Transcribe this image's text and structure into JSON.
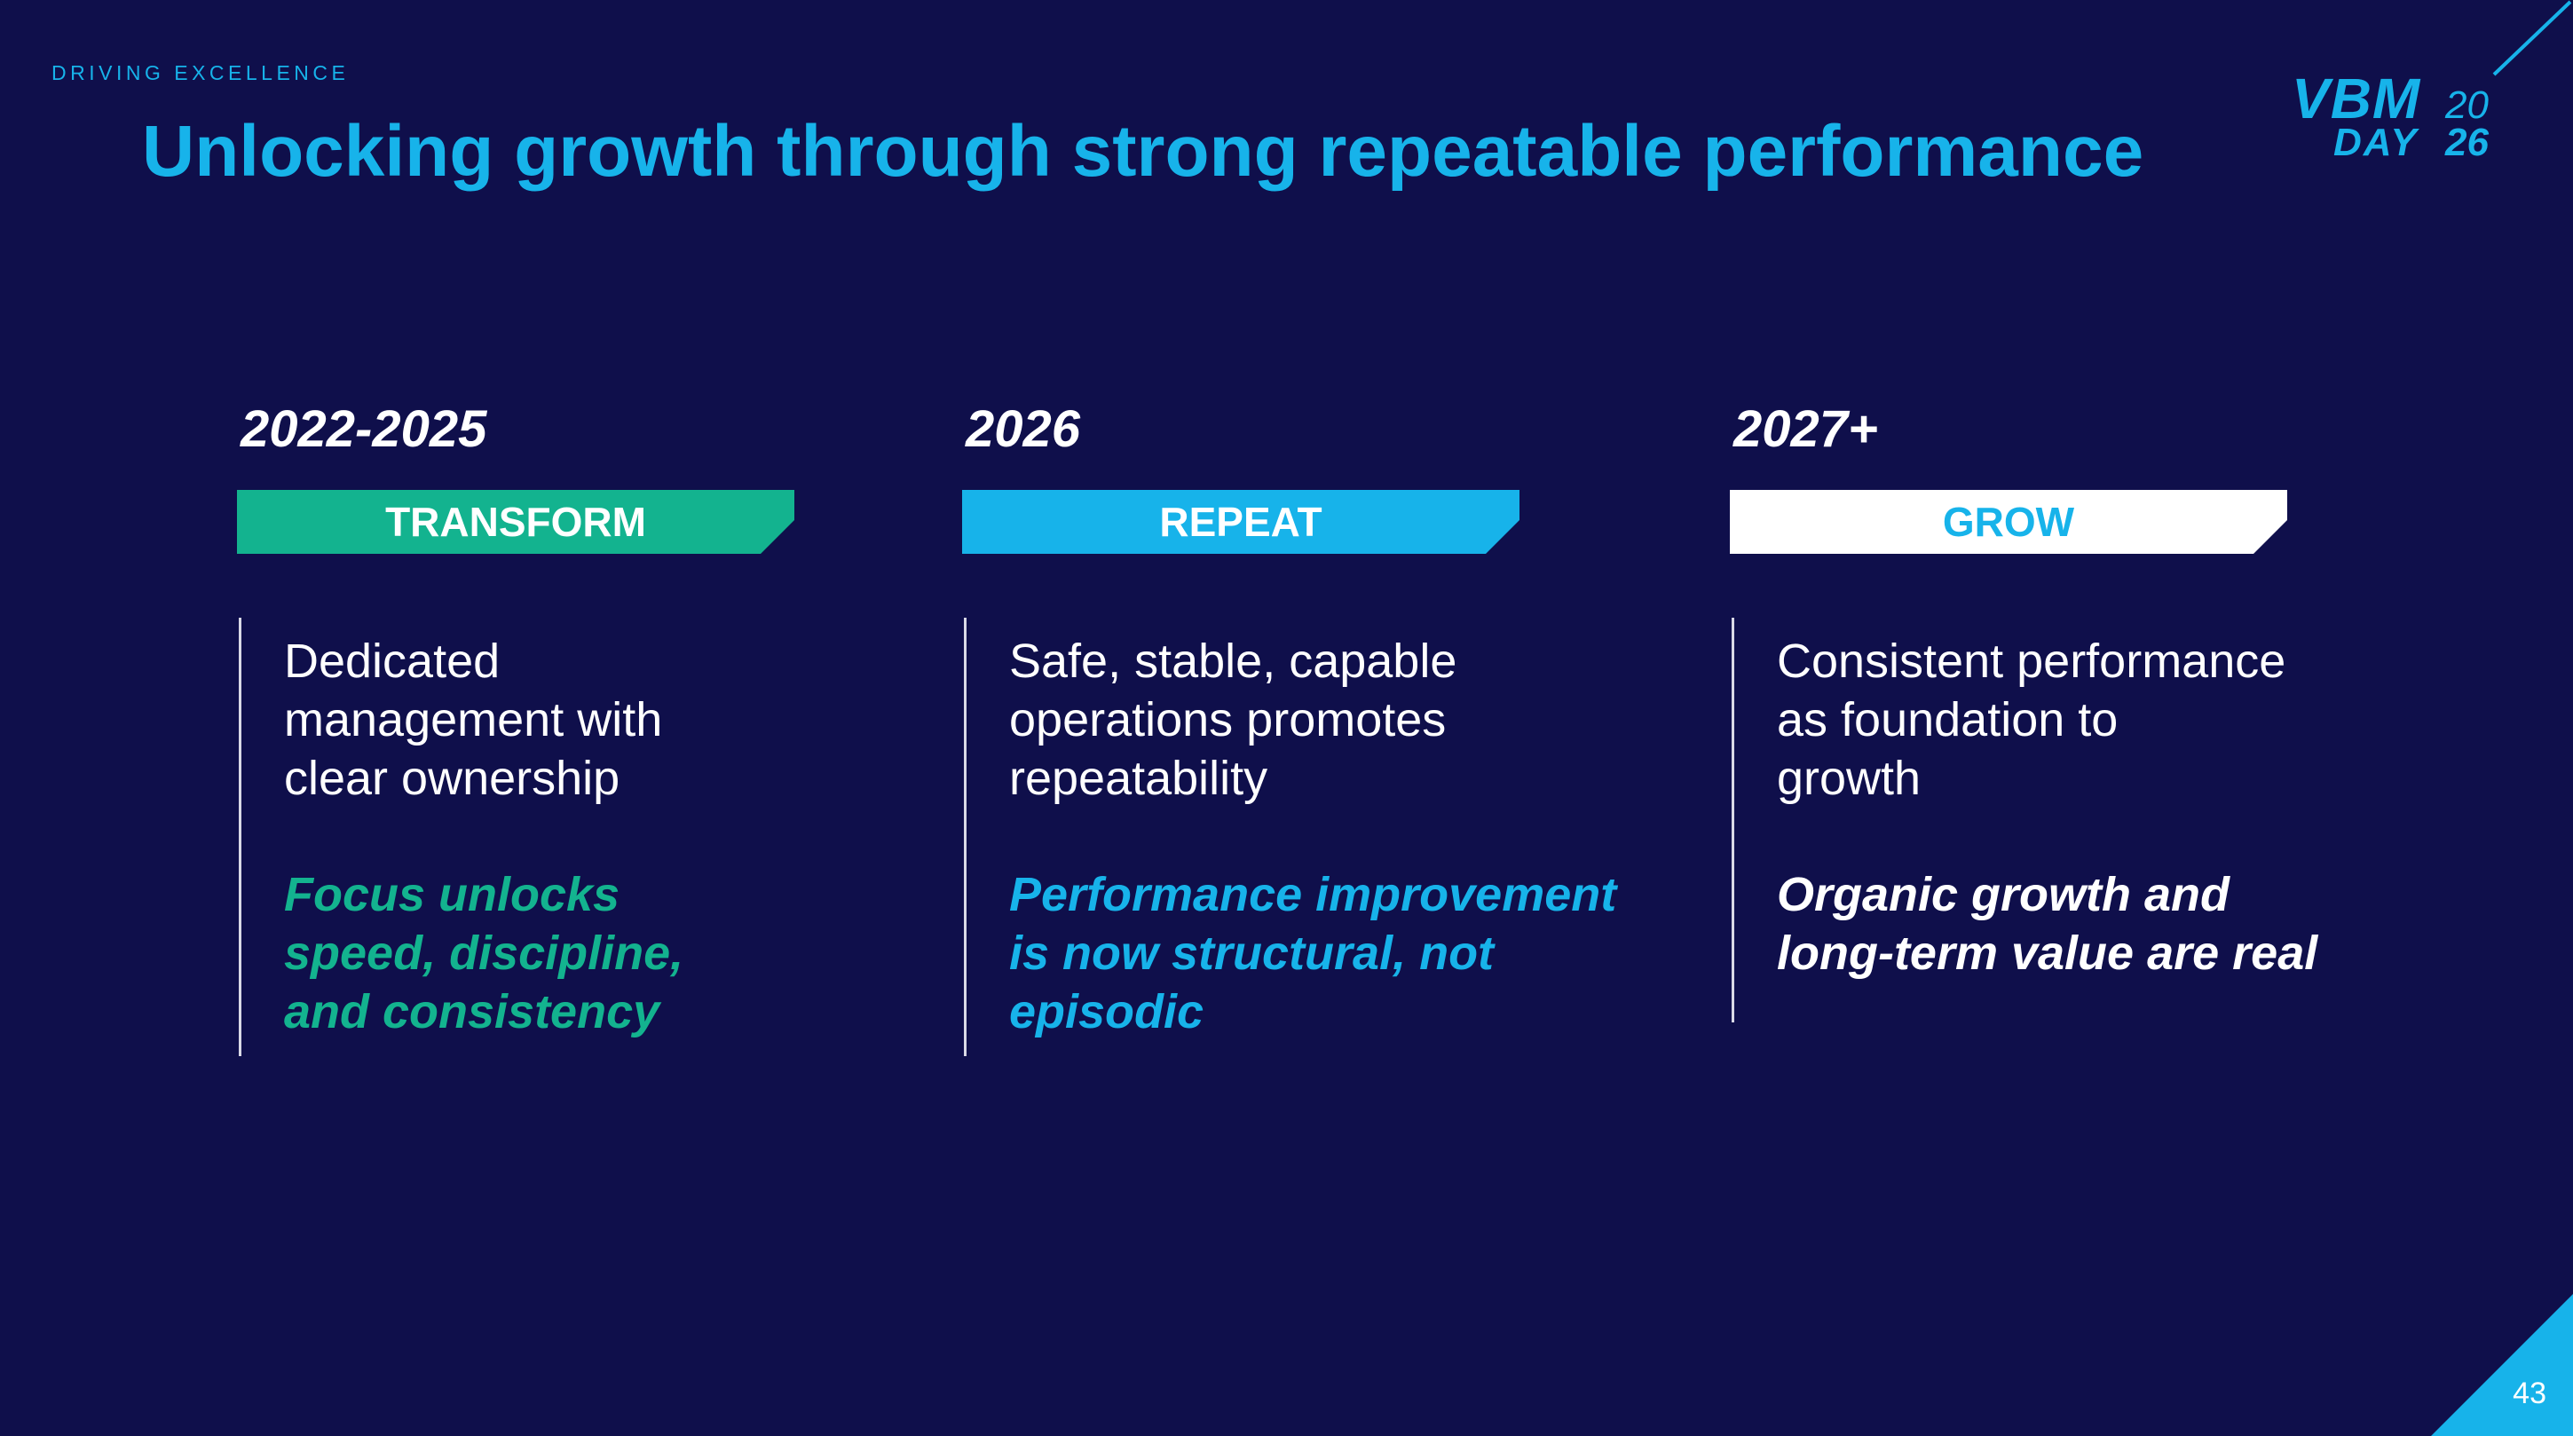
{
  "header": {
    "eyebrow": "DRIVING EXCELLENCE",
    "title": "Unlocking growth through strong repeatable performance"
  },
  "logo": {
    "vbm": "VBM",
    "day": "DAY",
    "year_top": "20",
    "year_bottom": "26"
  },
  "footer": {
    "page_number": "43"
  },
  "colors": {
    "background": "#0f0f4b",
    "accent_blue": "#17b3ea",
    "accent_green": "#13b38f",
    "white": "#ffffff"
  },
  "columns": [
    {
      "year": "2022-2025",
      "phase": "TRANSFORM",
      "phase_fill": "#13b38f",
      "phase_text_color": "#ffffff",
      "description": [
        "Dedicated",
        "management with",
        "clear ownership"
      ],
      "emphasis": [
        "Focus unlocks",
        "speed, discipline,",
        "and consistency"
      ],
      "emphasis_color": "#13b38f"
    },
    {
      "year": "2026",
      "phase": "REPEAT",
      "phase_fill": "#17b3ea",
      "phase_text_color": "#ffffff",
      "description": [
        "Safe, stable, capable",
        "operations promotes",
        "repeatability"
      ],
      "emphasis": [
        "Performance improvement",
        "is now structural, not",
        "episodic"
      ],
      "emphasis_color": "#17b3ea"
    },
    {
      "year": "2027+",
      "phase": "GROW",
      "phase_fill": "#ffffff",
      "phase_text_color": "#17b3ea",
      "description": [
        "Consistent performance",
        "as foundation to",
        "growth"
      ],
      "emphasis": [
        "Organic growth and",
        "long-term value are real"
      ],
      "emphasis_color": "#ffffff"
    }
  ]
}
